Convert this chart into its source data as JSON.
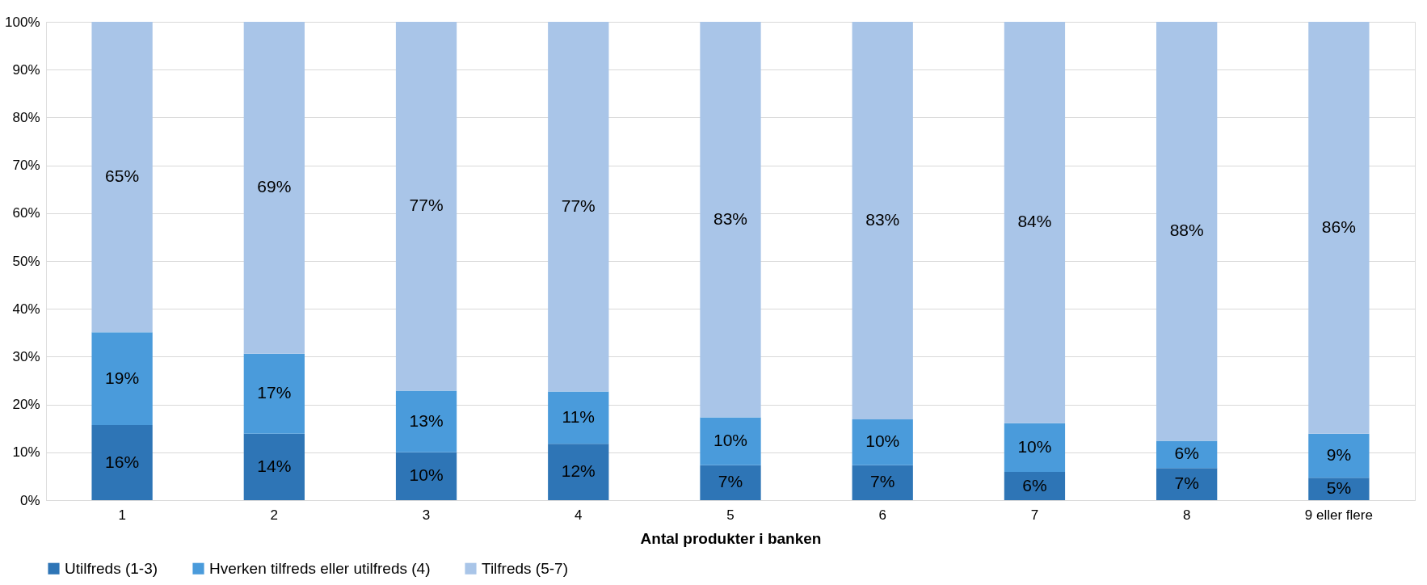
{
  "chart_data": {
    "type": "bar",
    "stacked": true,
    "xlabel": "Antal produkter i banken",
    "categories": [
      "1",
      "2",
      "3",
      "4",
      "5",
      "6",
      "7",
      "8",
      "9 eller flere"
    ],
    "series": [
      {
        "name": "Utilfreds (1-3)",
        "color": "#2e75b6",
        "values": [
          15.7,
          13.9,
          10.0,
          11.8,
          7.3,
          7.3,
          5.9,
          6.7,
          4.7
        ],
        "value_labels": [
          "16%",
          "14%",
          "10%",
          "12%",
          "7%",
          "7%",
          "6%",
          "7%",
          "5%"
        ]
      },
      {
        "name": "Hverken tilfreds eller utilfreds (4)",
        "color": "#4a9bdb",
        "values": [
          19.4,
          16.7,
          12.9,
          10.9,
          10.0,
          9.6,
          10.2,
          5.7,
          9.2
        ],
        "value_labels": [
          "19%",
          "17%",
          "13%",
          "11%",
          "10%",
          "10%",
          "10%",
          "6%",
          "9%"
        ]
      },
      {
        "name": "Tilfreds (5-7)",
        "color": "#a9c5e8",
        "values": [
          64.9,
          69.4,
          77.1,
          77.3,
          82.7,
          83.1,
          83.9,
          87.6,
          86.1
        ],
        "value_labels": [
          "65%",
          "69%",
          "77%",
          "77%",
          "83%",
          "83%",
          "84%",
          "88%",
          "86%"
        ]
      }
    ],
    "ylim": [
      0,
      100
    ],
    "yticks": [
      {
        "value": 0,
        "label": "0%"
      },
      {
        "value": 10,
        "label": "10%"
      },
      {
        "value": 20,
        "label": "20%"
      },
      {
        "value": 30,
        "label": "30%"
      },
      {
        "value": 40,
        "label": "40%"
      },
      {
        "value": 50,
        "label": "50%"
      },
      {
        "value": 60,
        "label": "60%"
      },
      {
        "value": 70,
        "label": "70%"
      },
      {
        "value": 80,
        "label": "80%"
      },
      {
        "value": 90,
        "label": "90%"
      },
      {
        "value": 100,
        "label": "100%"
      }
    ],
    "grid": "y",
    "legend": "bottom"
  }
}
